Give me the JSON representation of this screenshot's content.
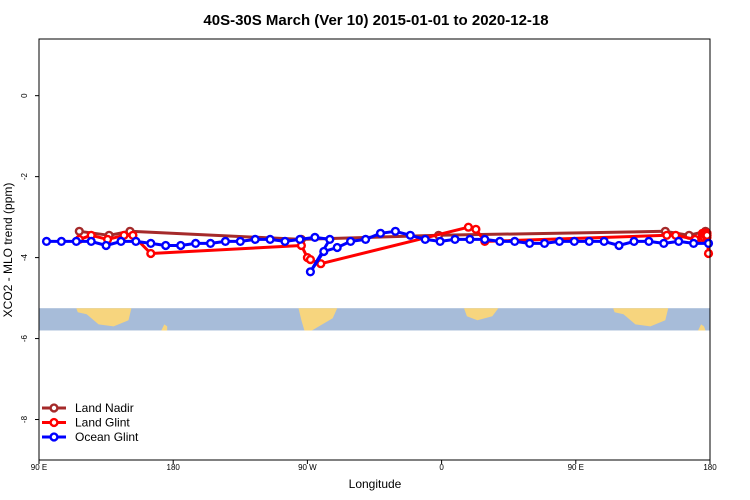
{
  "chart_data": {
    "type": "line",
    "title": "40S-30S March (Ver 10)   2015-01-01 to 2020-12-18",
    "xlabel": "Longitude",
    "ylabel": "XCO2 - MLO trend (ppm)",
    "x_ticks": [
      {
        "value": 90,
        "label": "90 E"
      },
      {
        "value": 180,
        "label": "180"
      },
      {
        "value": 270,
        "label": "90 W"
      },
      {
        "value": 360,
        "label": "0"
      },
      {
        "value": 450,
        "label": "90 E"
      },
      {
        "value": 540,
        "label": "180"
      }
    ],
    "y_ticks": [
      {
        "value": 0,
        "label": "0"
      },
      {
        "value": -2,
        "label": "-2"
      },
      {
        "value": -4,
        "label": "-4"
      },
      {
        "value": -6,
        "label": "-6"
      },
      {
        "value": -8,
        "label": "-8"
      }
    ],
    "xlim": [
      90,
      540
    ],
    "ylim": [
      -9.0,
      1.4
    ],
    "grid": false,
    "legend_position": "bottom-left",
    "map_strip": {
      "ylim": [
        -5.8,
        -5.25
      ],
      "ocean_color": "#a7bcd9",
      "land_color": "#f7d57e"
    },
    "series": [
      {
        "name": "Land Nadir",
        "color": "#a52a2a",
        "points": [
          [
            117,
            -3.35
          ],
          [
            137,
            -3.45
          ],
          [
            151,
            -3.35
          ],
          [
            266,
            -3.55
          ],
          [
            358,
            -3.45
          ],
          [
            510,
            -3.35
          ],
          [
            526,
            -3.45
          ],
          [
            537,
            -3.35
          ]
        ]
      },
      {
        "name": "Land Glint",
        "color": "#ff0000",
        "points": [
          [
            117,
            -3.55
          ],
          [
            125,
            -3.45
          ],
          [
            136,
            -3.55
          ],
          [
            147,
            -3.45
          ],
          [
            153,
            -3.45
          ],
          [
            165,
            -3.9
          ],
          [
            266,
            -3.7
          ],
          [
            270,
            -4.0
          ],
          [
            272,
            -4.05
          ],
          [
            279,
            -4.15
          ],
          [
            378,
            -3.25
          ],
          [
            383,
            -3.3
          ],
          [
            389,
            -3.6
          ],
          [
            511,
            -3.45
          ],
          [
            517,
            -3.45
          ],
          [
            530,
            -3.55
          ],
          [
            537,
            -3.45
          ],
          [
            535,
            -3.55
          ],
          [
            536,
            -3.4
          ],
          [
            537,
            -3.55
          ],
          [
            535,
            -3.45
          ],
          [
            537,
            -3.45
          ],
          [
            535,
            -3.4
          ],
          [
            537,
            -3.45
          ],
          [
            536,
            -3.45
          ],
          [
            537,
            -3.4
          ],
          [
            535,
            -3.45
          ],
          [
            536,
            -3.5
          ],
          [
            537,
            -3.45
          ],
          [
            537,
            -3.5
          ],
          [
            536,
            -3.45
          ],
          [
            537,
            -3.5
          ],
          [
            536,
            -3.4
          ],
          [
            538,
            -3.45
          ],
          [
            537,
            -3.5
          ],
          [
            536,
            -3.45
          ],
          [
            537,
            -3.45
          ],
          [
            536,
            -3.5
          ],
          [
            537,
            -3.45
          ],
          [
            538,
            -3.4
          ],
          [
            538,
            -3.45
          ],
          [
            538,
            -3.5
          ],
          [
            538,
            -3.45
          ],
          [
            538,
            -3.4
          ],
          [
            538,
            -3.45
          ],
          [
            539,
            -3.9
          ]
        ]
      },
      {
        "name": "Ocean Glint",
        "color": "#0000ff",
        "points": [
          [
            95,
            -3.6
          ],
          [
            105,
            -3.6
          ],
          [
            115,
            -3.6
          ],
          [
            125,
            -3.6
          ],
          [
            135,
            -3.7
          ],
          [
            145,
            -3.6
          ],
          [
            155,
            -3.6
          ],
          [
            165,
            -3.65
          ],
          [
            175,
            -3.7
          ],
          [
            185,
            -3.7
          ],
          [
            195,
            -3.65
          ],
          [
            205,
            -3.65
          ],
          [
            215,
            -3.6
          ],
          [
            225,
            -3.6
          ],
          [
            235,
            -3.55
          ],
          [
            245,
            -3.55
          ],
          [
            255,
            -3.6
          ],
          [
            265,
            -3.55
          ],
          [
            275,
            -3.5
          ],
          [
            285,
            -3.55
          ],
          [
            272,
            -4.35
          ],
          [
            281,
            -3.85
          ],
          [
            290,
            -3.75
          ],
          [
            299,
            -3.6
          ],
          [
            309,
            -3.55
          ],
          [
            319,
            -3.4
          ],
          [
            329,
            -3.35
          ],
          [
            339,
            -3.45
          ],
          [
            349,
            -3.55
          ],
          [
            359,
            -3.6
          ],
          [
            369,
            -3.55
          ],
          [
            379,
            -3.55
          ],
          [
            389,
            -3.55
          ],
          [
            399,
            -3.6
          ],
          [
            409,
            -3.6
          ],
          [
            419,
            -3.65
          ],
          [
            429,
            -3.65
          ],
          [
            439,
            -3.6
          ],
          [
            449,
            -3.6
          ],
          [
            459,
            -3.6
          ],
          [
            469,
            -3.6
          ],
          [
            479,
            -3.7
          ],
          [
            489,
            -3.6
          ],
          [
            499,
            -3.6
          ],
          [
            509,
            -3.65
          ],
          [
            519,
            -3.6
          ],
          [
            529,
            -3.65
          ],
          [
            539,
            -3.65
          ]
        ]
      }
    ]
  }
}
